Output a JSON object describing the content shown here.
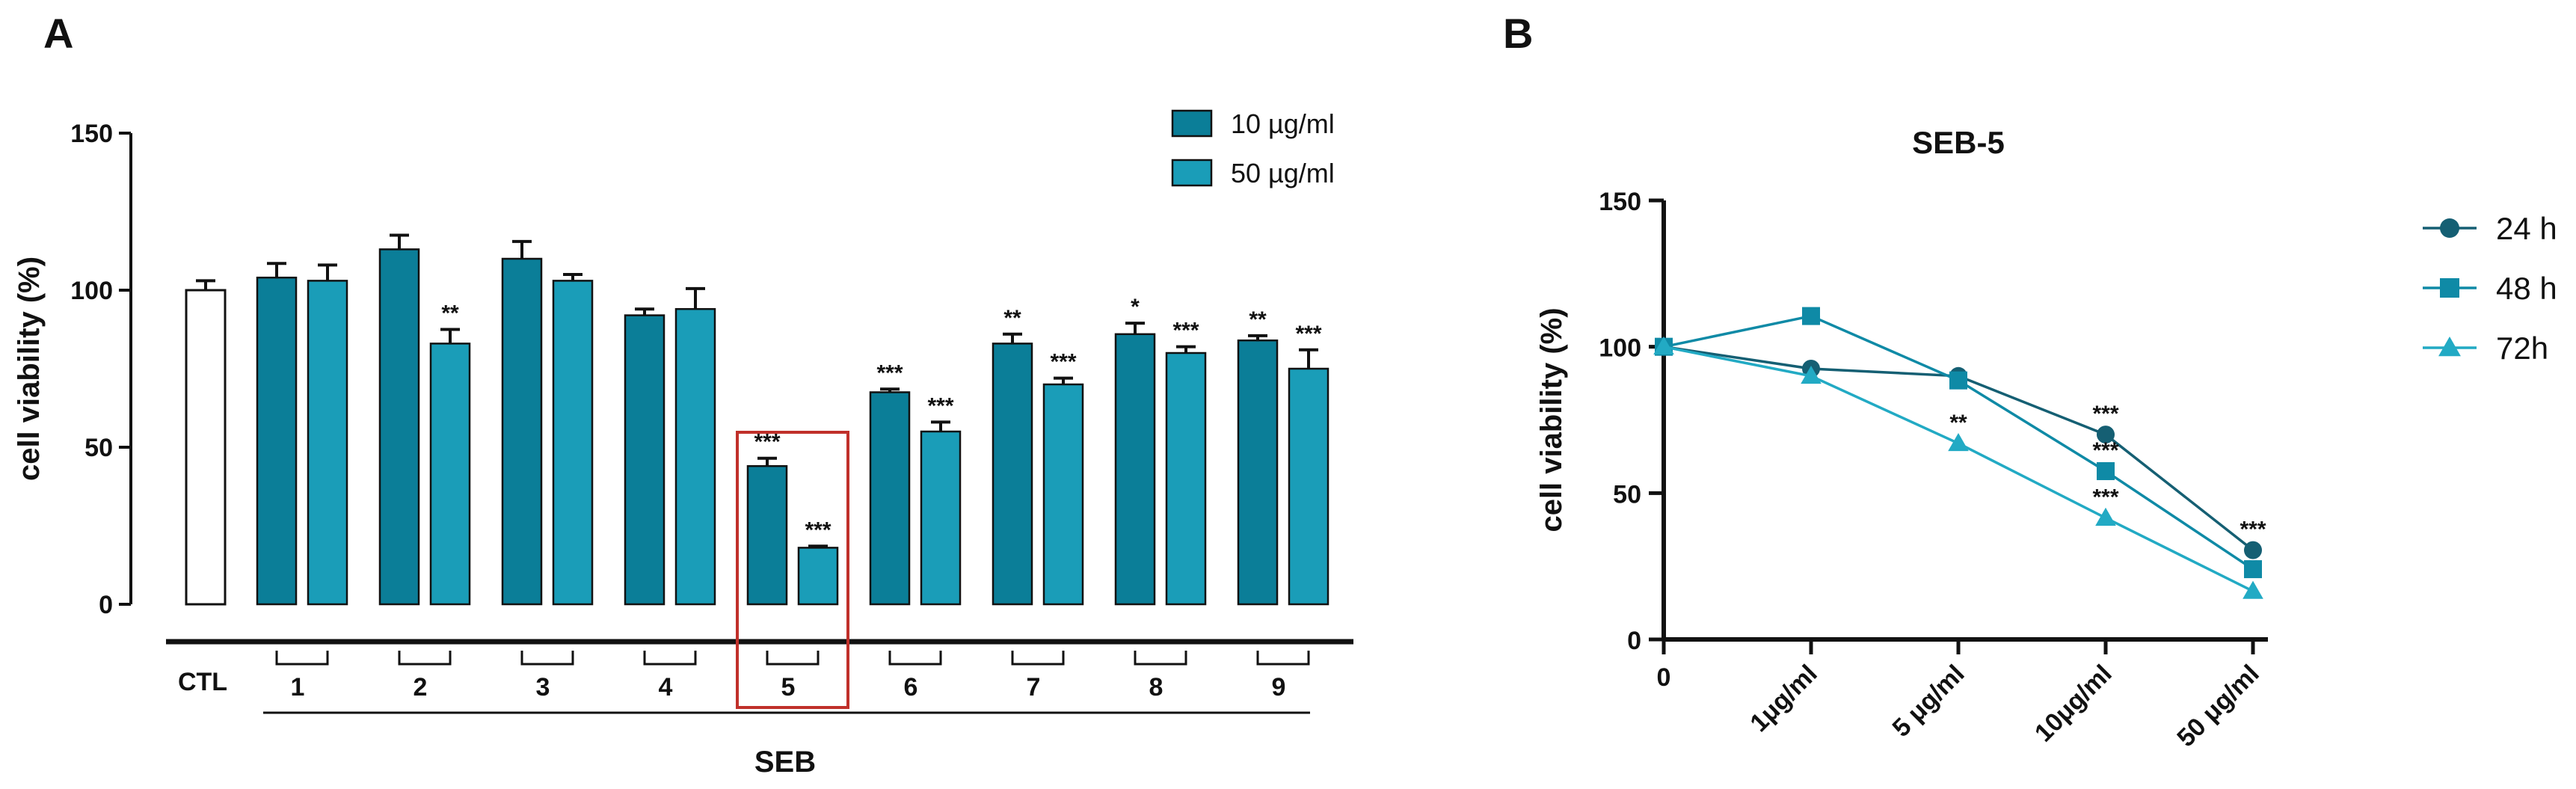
{
  "panels": {
    "a": "A",
    "b": "B"
  },
  "chart_data": [
    {
      "type": "bar",
      "panel": "A",
      "ylabel": "cell viability (%)",
      "ylim": [
        0,
        150
      ],
      "yticks": [
        0,
        50,
        100,
        150
      ],
      "ctl_label": "CTL",
      "ctl": {
        "value": 100,
        "error": 3
      },
      "categories": [
        "1",
        "2",
        "3",
        "4",
        "5",
        "6",
        "7",
        "8",
        "9"
      ],
      "group_label": "SEB",
      "highlight_category": "5",
      "highlight_color": "#c0302a",
      "series": [
        {
          "name": "10 µg/ml",
          "color": "#0b7e98",
          "values": [
            104,
            113,
            110,
            92,
            44,
            67.5,
            83,
            86,
            84
          ],
          "errors": [
            4.5,
            4.5,
            5.5,
            2,
            2.5,
            1,
            3,
            3.5,
            1.5
          ],
          "sig": [
            "",
            "",
            "",
            "",
            "***",
            "***",
            "**",
            "*",
            "**"
          ]
        },
        {
          "name": "50 µg/ml",
          "color": "#1a9db8",
          "values": [
            103,
            83,
            103,
            94,
            18,
            55,
            70,
            80,
            75
          ],
          "errors": [
            5,
            4.5,
            2,
            6.5,
            0.5,
            3,
            2,
            2,
            6
          ],
          "sig": [
            "",
            "**",
            "",
            "",
            "***",
            "***",
            "***",
            "***",
            "***"
          ]
        }
      ],
      "legend_position": "top-right",
      "grid": false
    },
    {
      "type": "line",
      "panel": "B",
      "title": "SEB-5",
      "ylabel": "cell viability (%)",
      "ylim": [
        0,
        150
      ],
      "yticks": [
        0,
        50,
        100,
        150
      ],
      "categories": [
        "0",
        "1μg/ml",
        "5 μg/ml",
        "10μg/ml",
        "50 μg/ml"
      ],
      "series": [
        {
          "name": "24 h",
          "marker": "circle",
          "color": "#155f73",
          "values": [
            100,
            92.5,
            90,
            70,
            30.5
          ],
          "sig": [
            "",
            "",
            "",
            "***",
            "***"
          ]
        },
        {
          "name": "48 h",
          "marker": "square",
          "color": "#0f8aa6",
          "values": [
            100,
            110.5,
            88.5,
            57.5,
            24
          ],
          "sig": [
            "",
            "",
            "",
            "***",
            ""
          ]
        },
        {
          "name": "72h",
          "marker": "triangle",
          "color": "#22aac4",
          "values": [
            100,
            90,
            67,
            41.5,
            16.5
          ],
          "sig": [
            "",
            "",
            "**",
            "***",
            ""
          ]
        }
      ],
      "legend_position": "right",
      "grid": false
    }
  ]
}
